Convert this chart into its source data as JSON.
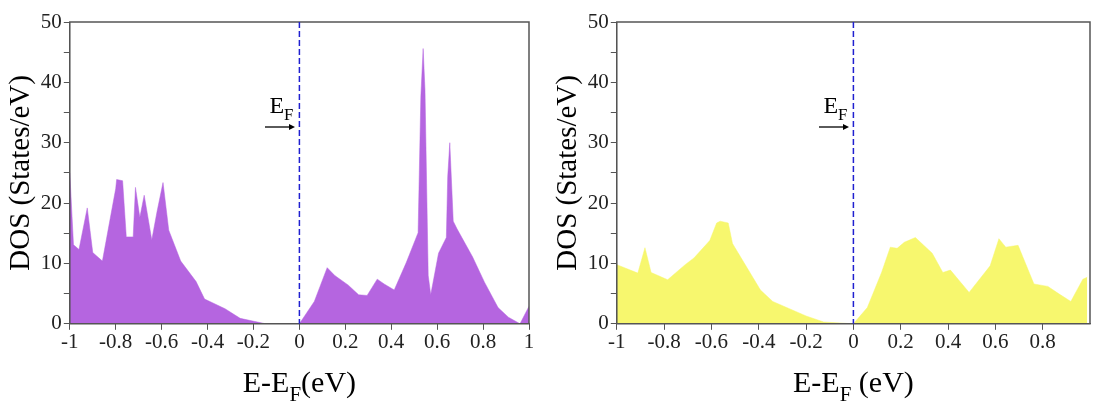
{
  "chart_data": [
    {
      "type": "area",
      "xlabel": "E-E$_{F}$(eV)",
      "ylabel": "DOS (States/eV)",
      "series": [
        {
          "color": "#b565e0",
          "x": [
            -1,
            -0.984,
            -0.96,
            -0.924,
            -0.9,
            -0.858,
            -0.8,
            -0.796,
            -0.77,
            -0.754,
            -0.724,
            -0.714,
            -0.695,
            -0.676,
            -0.643,
            -0.62,
            -0.594,
            -0.569,
            -0.517,
            -0.45,
            -0.413,
            -0.324,
            -0.258,
            -0.147,
            0,
            0.065,
            0.121,
            0.154,
            0.213,
            0.258,
            0.295,
            0.339,
            0.369,
            0.413,
            0.465,
            0.517,
            0.529,
            0.539,
            0.547,
            0.561,
            0.572,
            0.606,
            0.64,
            0.646,
            0.655,
            0.67,
            0.687,
            0.754,
            0.806,
            0.865,
            0.91,
            0.961,
            1
          ],
          "values": [
            25,
            13.1,
            12.3,
            19.2,
            11.8,
            10.4,
            22.4,
            23.9,
            23.7,
            14.4,
            14.4,
            22.6,
            17.6,
            21.3,
            13.9,
            18.6,
            23.4,
            15.5,
            10.4,
            7,
            4.1,
            2.5,
            0.9,
            0,
            0,
            3.7,
            9.3,
            8,
            6.4,
            4.8,
            4.7,
            7.4,
            6.6,
            5.6,
            10.1,
            15.1,
            37.7,
            45.6,
            38.7,
            8,
            4.8,
            11.7,
            14.3,
            24.4,
            30,
            17,
            15.7,
            11.1,
            6.9,
            2.7,
            1.1,
            0,
            2.9
          ]
        }
      ],
      "xlim": [
        -1,
        1
      ],
      "xticks": [
        -1,
        -0.8,
        -0.6,
        -0.4,
        -0.2,
        0,
        0.2,
        0.4,
        0.6,
        0.8,
        1
      ],
      "ylim": [
        0,
        50
      ],
      "yticks": [
        0,
        {
          "value": 5,
          "label": null
        },
        10,
        {
          "value": 15,
          "label": null
        },
        20,
        {
          "value": 25,
          "label": null
        },
        30,
        {
          "value": 35,
          "label": null
        },
        40,
        {
          "value": 45,
          "label": null
        },
        50
      ],
      "ref_lines": [
        {
          "axis": "x",
          "value": 0,
          "label": "E$_{F}$",
          "color": "#2020d0",
          "line_style": "dashed"
        }
      ]
    },
    {
      "type": "area",
      "xlabel": "E-E$_{F}$ (eV)",
      "ylabel": "DOS (States/eV)",
      "series": [
        {
          "color": "#f7f76e",
          "x": [
            -1,
            -0.911,
            -0.881,
            -0.855,
            -0.785,
            -0.711,
            -0.674,
            -0.607,
            -0.578,
            -0.563,
            -0.529,
            -0.511,
            -0.393,
            -0.341,
            -0.2,
            -0.126,
            0,
            0.059,
            0.119,
            0.156,
            0.185,
            0.215,
            0.262,
            0.333,
            0.378,
            0.41,
            0.489,
            0.578,
            0.615,
            0.644,
            0.696,
            0.763,
            0.822,
            0.867,
            0.919,
            0.97,
            0.988
          ],
          "values": [
            9.8,
            8.4,
            12.6,
            8.5,
            7.3,
            9.8,
            10.9,
            13.8,
            16.7,
            17,
            16.7,
            13.3,
            5.6,
            3.7,
            1.3,
            0.3,
            0,
            2.7,
            8.5,
            12.7,
            12.5,
            13.5,
            14.3,
            11.7,
            8.5,
            8.9,
            5.2,
            9.6,
            14.1,
            12.7,
            13,
            6.6,
            6.2,
            5,
            3.7,
            7.4,
            7.7
          ]
        }
      ],
      "xlim": [
        -1,
        1
      ],
      "xticks": [
        -1,
        -0.8,
        -0.6,
        -0.4,
        -0.2,
        0,
        0.2,
        0.4,
        0.6,
        0.8
      ],
      "ylim": [
        0,
        50
      ],
      "yticks": [
        0,
        {
          "value": 5,
          "label": null
        },
        10,
        {
          "value": 15,
          "label": null
        },
        20,
        {
          "value": 25,
          "label": null
        },
        30,
        {
          "value": 35,
          "label": null
        },
        40,
        {
          "value": 45,
          "label": null
        },
        50
      ],
      "ref_lines": [
        {
          "axis": "x",
          "value": 0,
          "label": "E$_{F}$",
          "color": "#2020d0",
          "line_style": "dashed"
        }
      ]
    }
  ]
}
